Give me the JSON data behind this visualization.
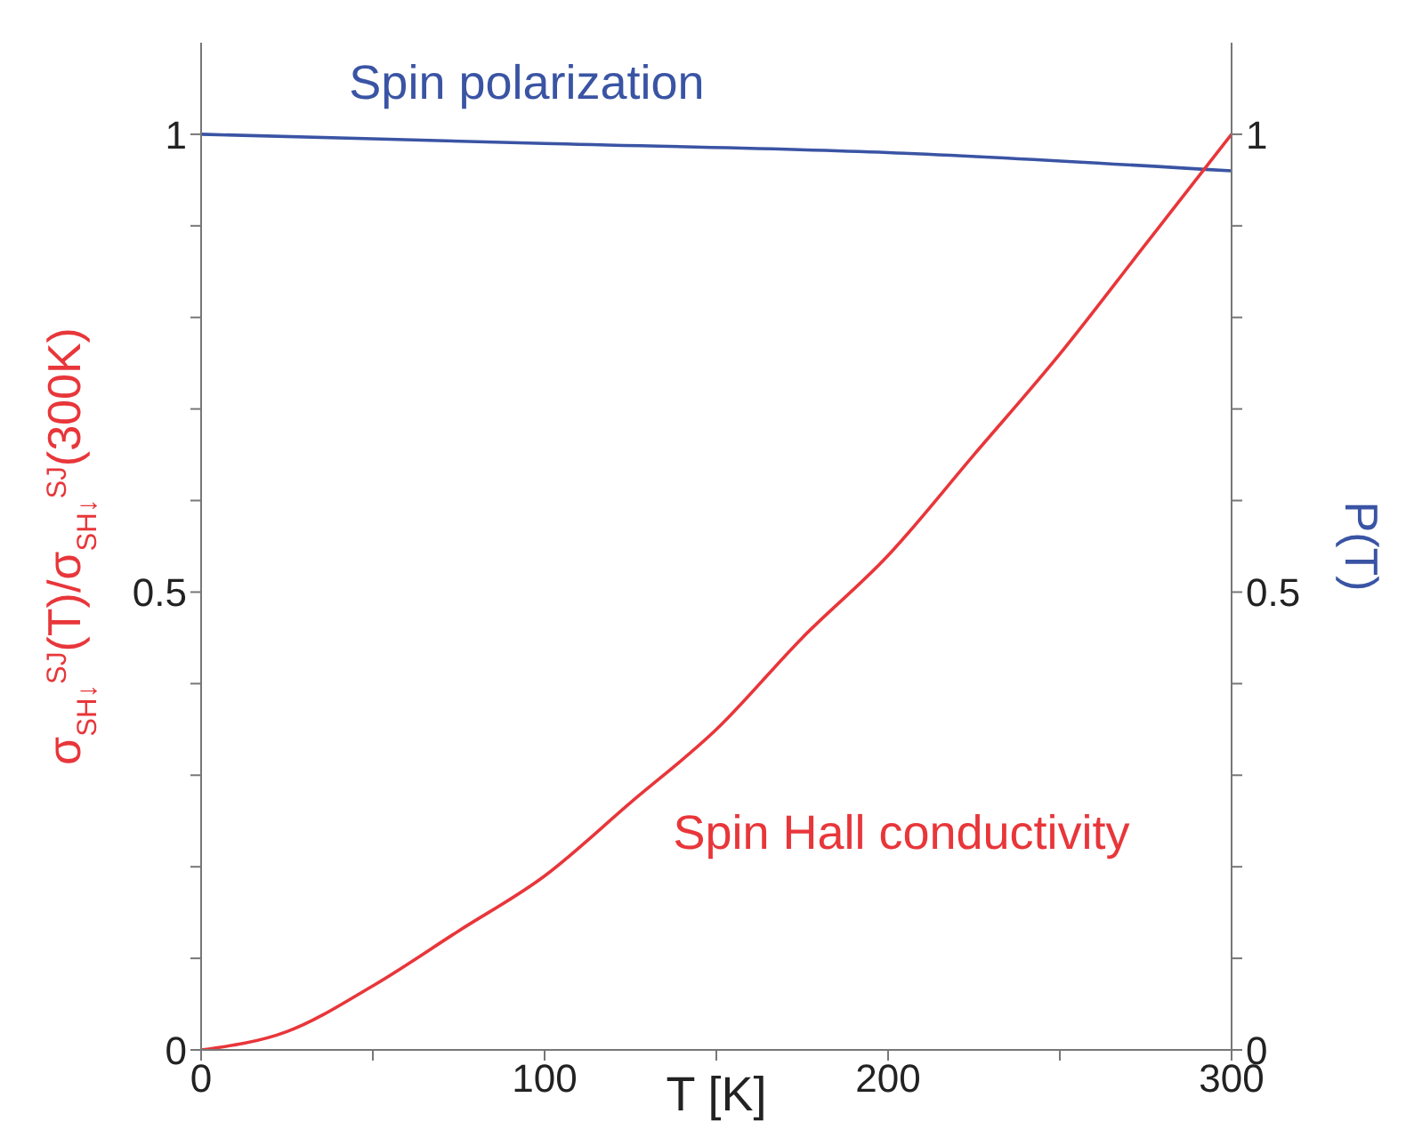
{
  "chart_data": {
    "type": "line",
    "xlabel": "T [K]",
    "ylabel": "σ$_{SH↓}$$^{SJ}$(T)/σ$_{SH↓}$$^{SJ}$(300K)",
    "y2label": "P(T)",
    "x": [
      0,
      25,
      50,
      75,
      100,
      125,
      150,
      175,
      200,
      225,
      250,
      275,
      300
    ],
    "series": [
      {
        "name": "Spin polarization",
        "color": "#3a54a4",
        "axis": "y2",
        "x": [
          0,
          100,
          200,
          300
        ],
        "values": [
          1.0,
          0.99,
          0.98,
          0.96
        ]
      },
      {
        "name": "Spin Hall conductivity",
        "color": "#e8363a",
        "values": [
          0,
          0.02,
          0.07,
          0.13,
          0.19,
          0.27,
          0.35,
          0.45,
          0.54,
          0.65,
          0.76,
          0.88,
          1.0
        ]
      }
    ],
    "xlim": [
      0,
      300
    ],
    "xticks": [
      0,
      {
        "value": 50,
        "label": null
      },
      100,
      {
        "value": 150,
        "label": null
      },
      200,
      {
        "value": 250,
        "label": null
      },
      300
    ],
    "ylim": [
      0,
      1.1
    ],
    "yticks": [
      0,
      {
        "value": 0.1,
        "label": null
      },
      {
        "value": 0.2,
        "label": null
      },
      {
        "value": 0.3,
        "label": null
      },
      {
        "value": 0.4,
        "label": null
      },
      0.5,
      {
        "value": 0.6,
        "label": null
      },
      {
        "value": 0.7,
        "label": null
      },
      {
        "value": 0.8,
        "label": null
      },
      {
        "value": 0.9,
        "label": null
      },
      1
    ],
    "y2lim": [
      0,
      1.1
    ],
    "y2ticks": [
      0,
      {
        "value": 0.1,
        "label": null
      },
      {
        "value": 0.2,
        "label": null
      },
      {
        "value": 0.3,
        "label": null
      },
      {
        "value": 0.4,
        "label": null
      },
      0.5,
      {
        "value": 0.6,
        "label": null
      },
      {
        "value": 0.7,
        "label": null
      },
      {
        "value": 0.8,
        "label": null
      },
      {
        "value": 0.9,
        "label": null
      },
      1
    ]
  }
}
